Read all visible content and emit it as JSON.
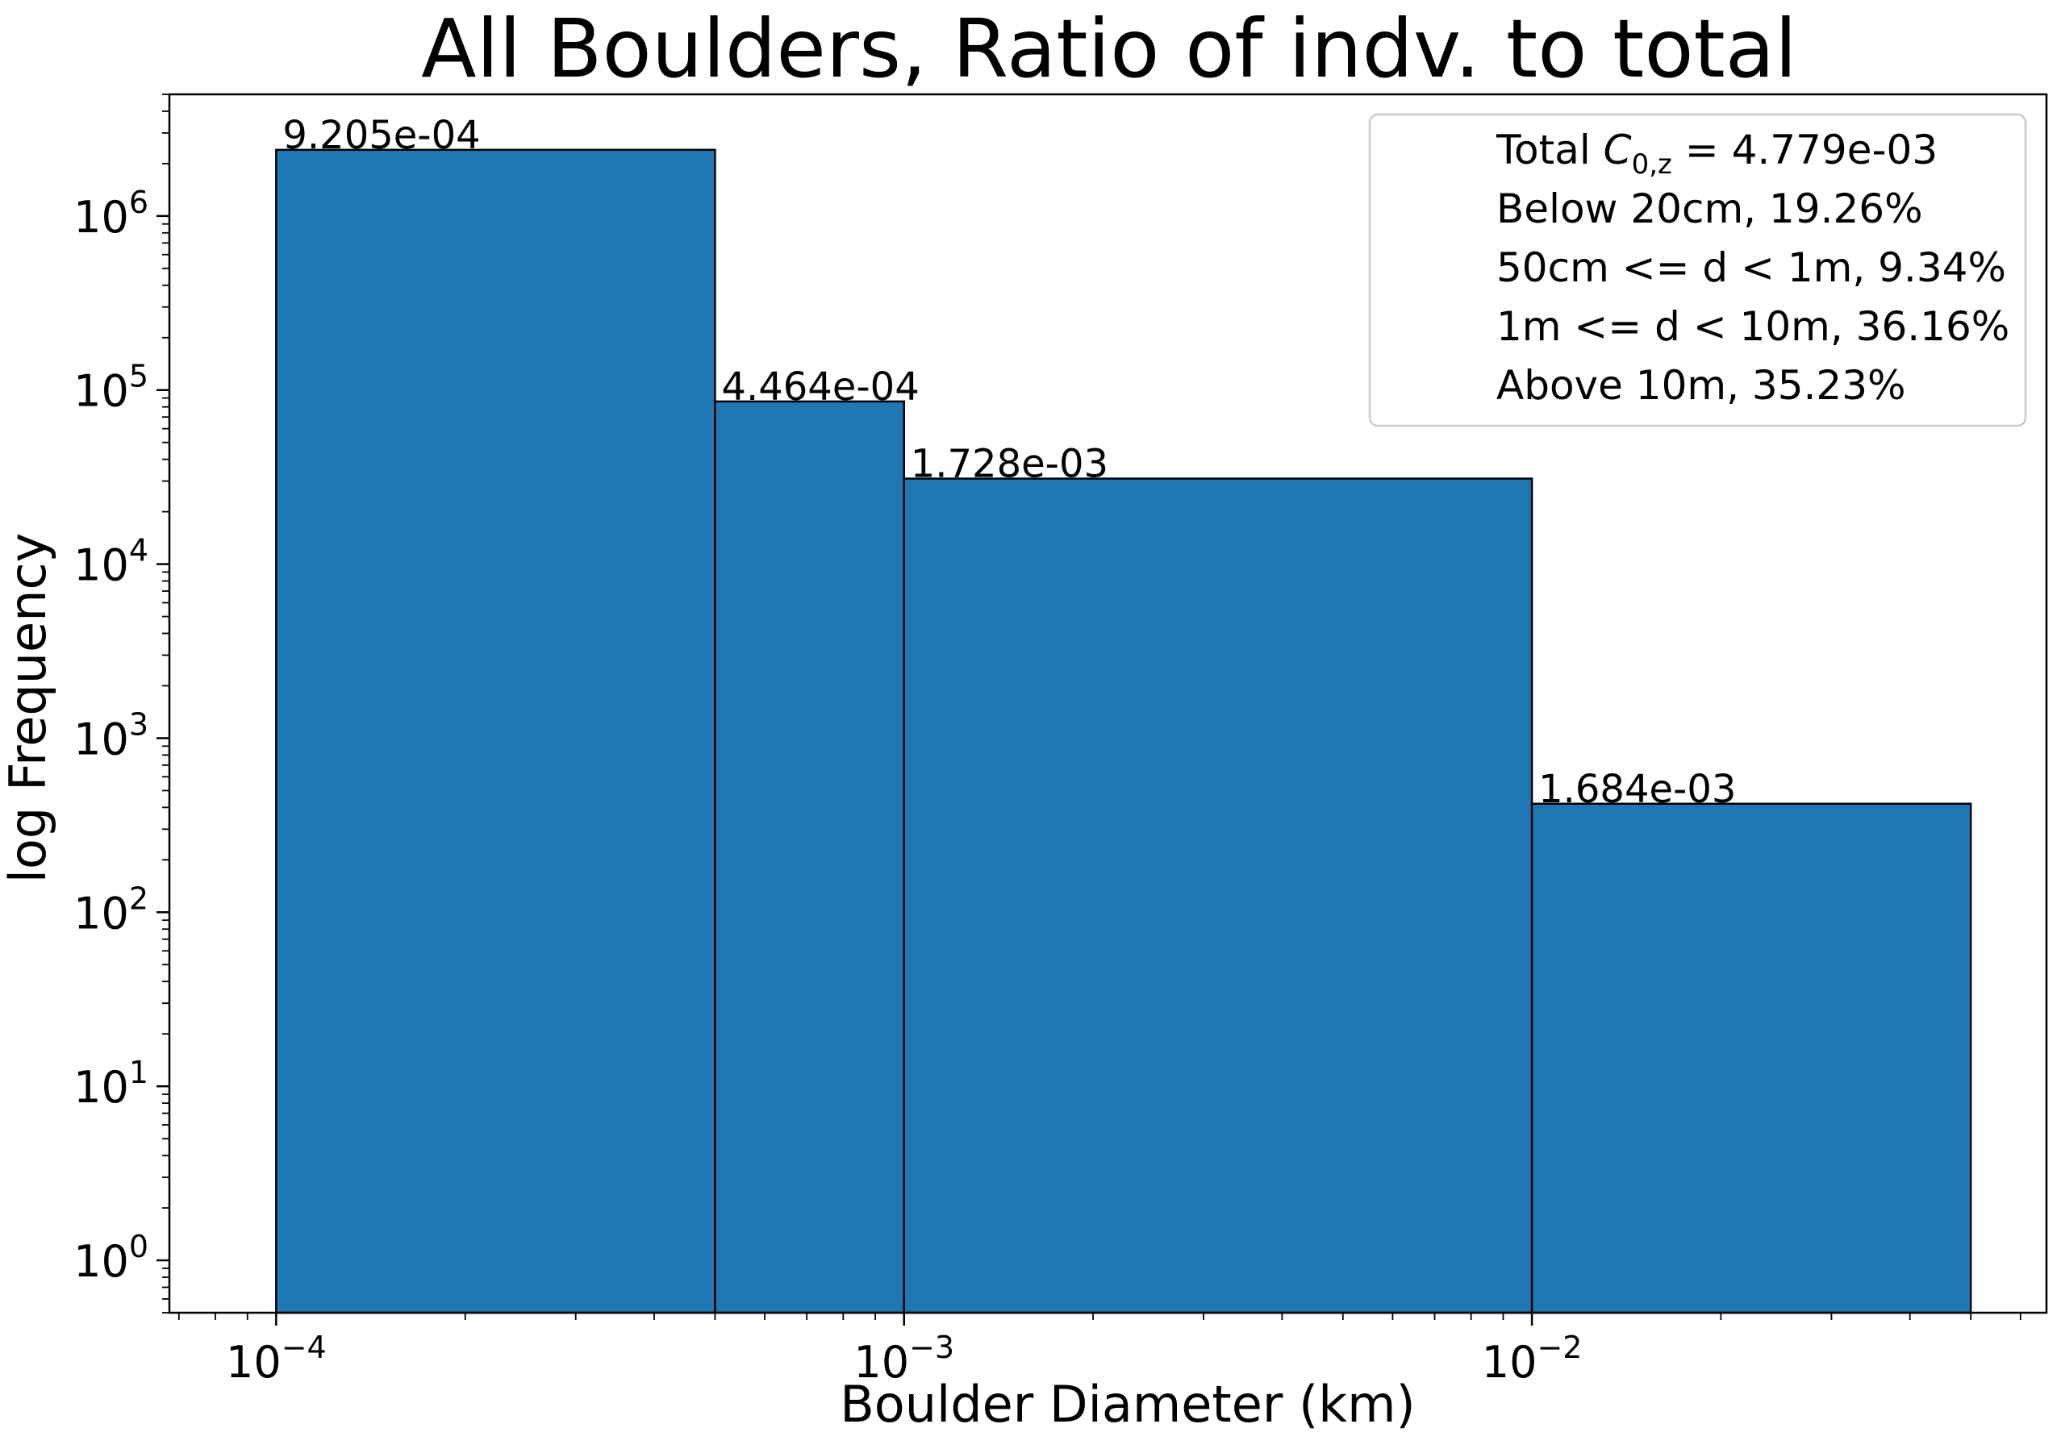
{
  "chart_data": {
    "type": "bar",
    "title": "All Boulders, Ratio of indv. to total",
    "xlabel": "Boulder Diameter (km)",
    "ylabel": "log Frequency",
    "x_scale": "log",
    "y_scale": "log",
    "xlim": [
      6.76e-05,
      0.066
    ],
    "ylim": [
      0.5,
      5000000
    ],
    "x_ticks": [
      {
        "base": "10",
        "exp": "−4",
        "value": 0.0001
      },
      {
        "base": "10",
        "exp": "−3",
        "value": 0.001
      },
      {
        "base": "10",
        "exp": "−2",
        "value": 0.01
      }
    ],
    "y_ticks": [
      {
        "base": "10",
        "exp": "0",
        "value": 1
      },
      {
        "base": "10",
        "exp": "1",
        "value": 10
      },
      {
        "base": "10",
        "exp": "2",
        "value": 100
      },
      {
        "base": "10",
        "exp": "3",
        "value": 1000
      },
      {
        "base": "10",
        "exp": "4",
        "value": 10000
      },
      {
        "base": "10",
        "exp": "5",
        "value": 100000
      },
      {
        "base": "10",
        "exp": "6",
        "value": 1000000
      }
    ],
    "bars": [
      {
        "x0": 0.0001,
        "x1": 0.0005,
        "value": 2400000,
        "label": "9.205e-04"
      },
      {
        "x0": 0.0005,
        "x1": 0.001,
        "value": 86000,
        "label": "4.464e-04"
      },
      {
        "x0": 0.001,
        "x1": 0.01,
        "value": 31000,
        "label": "1.728e-03"
      },
      {
        "x0": 0.01,
        "x1": 0.05,
        "value": 420,
        "label": "1.684e-03"
      }
    ],
    "bar_color": "#1f77b4",
    "grid": false,
    "legend": {
      "placement": "upper right",
      "entries": [
        {
          "prefix": "Total ",
          "symbol": "C",
          "sub": "0,z",
          "suffix": " = 4.779e-03"
        },
        {
          "prefix": "Below 20cm, 19.26%"
        },
        {
          "prefix": "50cm <= d < 1m, 9.34%"
        },
        {
          "prefix": "1m <= d < 10m, 36.16%"
        },
        {
          "prefix": "Above 10m, 35.23%"
        }
      ]
    }
  }
}
